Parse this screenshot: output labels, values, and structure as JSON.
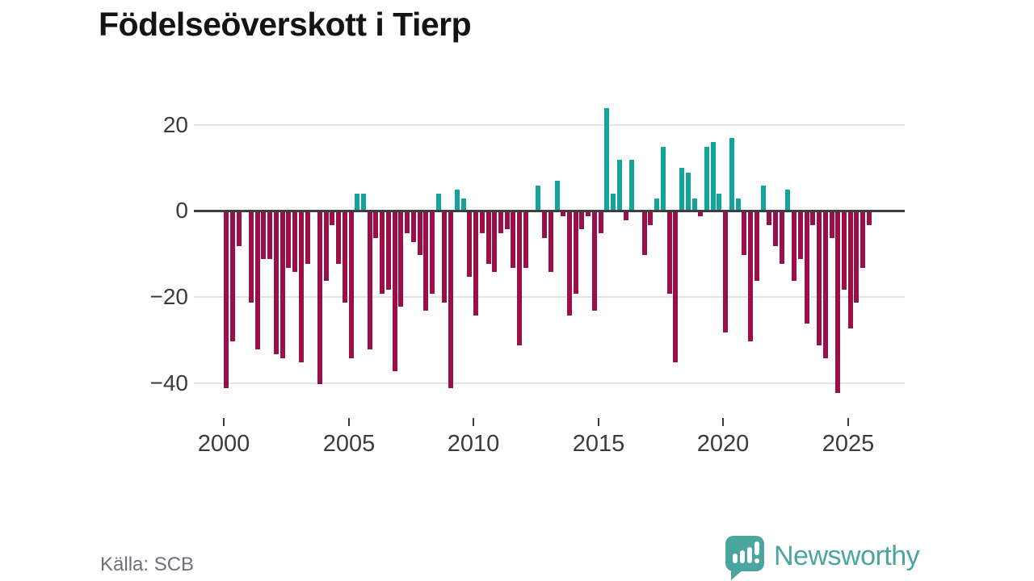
{
  "title": "Födelseöverskott i Tierp",
  "source": "Källa: SCB",
  "branding": {
    "name": "Newsworthy"
  },
  "colors": {
    "positive": "#13a49b",
    "negative": "#9b0e47",
    "grid": "#e4e4e4",
    "zero_line": "#3d3d3d",
    "axis_text": "#3b3b3b",
    "title_text": "#141414",
    "source_text": "#6f6f79",
    "brand": "#4aa59f"
  },
  "chart_data": {
    "type": "bar",
    "title": "Födelseöverskott i Tierp",
    "period": "quarterly",
    "start": "2000-Q1",
    "end": "2025-Q4",
    "ylim": [
      -45,
      27
    ],
    "grid": "horizontal",
    "x_tick_labels": [
      "2000",
      "2005",
      "2010",
      "2015",
      "2020",
      "2025"
    ],
    "y_tick_labels": [
      "20",
      "0",
      "−20",
      "−40"
    ],
    "y_tick_values": [
      20,
      0,
      -20,
      -40
    ],
    "values": [
      -41,
      -30,
      -8,
      0,
      -21,
      -32,
      -11,
      -11,
      -33,
      -34,
      -13,
      -14,
      -35,
      -12,
      0,
      -40,
      -16,
      -3,
      -12,
      -21,
      -34,
      4,
      4,
      -32,
      -6,
      -19,
      -18,
      -37,
      -22,
      -5,
      -7,
      -10,
      -23,
      -19,
      4,
      -21,
      -41,
      5,
      3,
      -15,
      -24,
      -5,
      -12,
      -14,
      -5,
      -4,
      -13,
      -31,
      -13,
      0,
      6,
      -6,
      -14,
      7,
      -1,
      -24,
      -19,
      -4,
      -1,
      -23,
      -5,
      24,
      4,
      12,
      -2,
      12,
      0,
      -10,
      -3,
      3,
      15,
      -19,
      -35,
      10,
      9,
      3,
      -1,
      15,
      16,
      4,
      -28,
      17,
      3,
      -10,
      -30,
      -16,
      6,
      -3,
      -8,
      -12,
      5,
      -16,
      -11,
      -26,
      -3,
      -31,
      -34,
      -6,
      -42,
      -18,
      -27,
      -21,
      -13,
      -3
    ]
  }
}
